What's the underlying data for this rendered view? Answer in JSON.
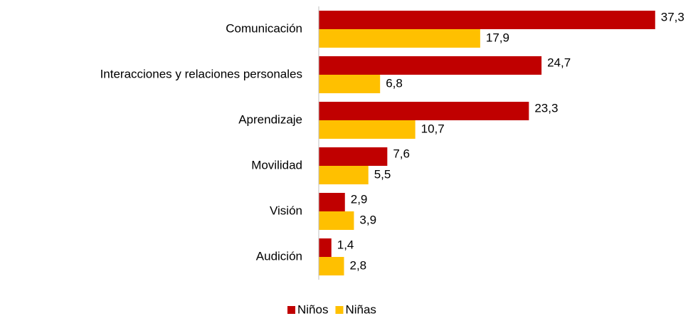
{
  "chart_data": {
    "type": "hbar",
    "categories": [
      "Comunicación",
      "Interacciones y relaciones personales",
      "Aprendizaje",
      "Movilidad",
      "Visión",
      "Audición"
    ],
    "series": [
      {
        "name": "Niños",
        "color": "#c00000",
        "values": [
          37.3,
          24.7,
          23.3,
          7.6,
          2.9,
          1.4
        ],
        "value_labels": [
          "37,3",
          "24,7",
          "23,3",
          "7,6",
          "2,9",
          "1,4"
        ]
      },
      {
        "name": "Niñas",
        "color": "#ffc000",
        "values": [
          17.9,
          6.8,
          10.7,
          5.5,
          3.9,
          2.8
        ],
        "value_labels": [
          "17,9",
          "6,8",
          "10,7",
          "5,5",
          "3,9",
          "2,8"
        ]
      }
    ],
    "xlim": [
      0,
      40
    ],
    "legend": "bottom"
  }
}
